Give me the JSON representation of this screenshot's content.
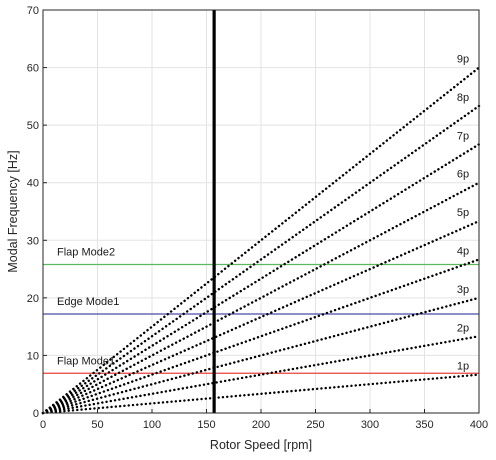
{
  "chart_data": {
    "type": "line",
    "xlabel": "Rotor Speed [rpm]",
    "ylabel": "Modal Frequency [Hz]",
    "xlim": [
      0,
      400
    ],
    "ylim": [
      0,
      70
    ],
    "xticks": [
      "0",
      "50",
      "100",
      "150",
      "200",
      "250",
      "300",
      "350",
      "400"
    ],
    "yticks": [
      "0",
      "10",
      "20",
      "30",
      "40",
      "50",
      "60",
      "70"
    ],
    "grid": true,
    "harmonics": [
      {
        "label": "1p",
        "multiple": 1,
        "points": [
          [
            0,
            0
          ],
          [
            400,
            6.67
          ]
        ]
      },
      {
        "label": "2p",
        "multiple": 2,
        "points": [
          [
            0,
            0
          ],
          [
            400,
            13.33
          ]
        ]
      },
      {
        "label": "3p",
        "multiple": 3,
        "points": [
          [
            0,
            0
          ],
          [
            400,
            20.0
          ]
        ]
      },
      {
        "label": "4p",
        "multiple": 4,
        "points": [
          [
            0,
            0
          ],
          [
            400,
            26.67
          ]
        ]
      },
      {
        "label": "5p",
        "multiple": 5,
        "points": [
          [
            0,
            0
          ],
          [
            400,
            33.33
          ]
        ]
      },
      {
        "label": "6p",
        "multiple": 6,
        "points": [
          [
            0,
            0
          ],
          [
            400,
            40.0
          ]
        ]
      },
      {
        "label": "7p",
        "multiple": 7,
        "points": [
          [
            0,
            0
          ],
          [
            400,
            46.67
          ]
        ]
      },
      {
        "label": "8p",
        "multiple": 8,
        "points": [
          [
            0,
            0
          ],
          [
            400,
            53.33
          ]
        ]
      },
      {
        "label": "9p",
        "multiple": 9,
        "points": [
          [
            0,
            0
          ],
          [
            400,
            60.0
          ]
        ]
      }
    ],
    "modes": [
      {
        "label": "Flap Mode2",
        "y": 25.8,
        "color": "#5cb85c"
      },
      {
        "label": "Edge Mode1",
        "y": 17.2,
        "color": "#4a4aa8"
      },
      {
        "label": "Flap Mode1",
        "y": 6.9,
        "color": "#e8423c"
      }
    ],
    "vertical_line": {
      "x": 157,
      "color": "#000000"
    }
  }
}
